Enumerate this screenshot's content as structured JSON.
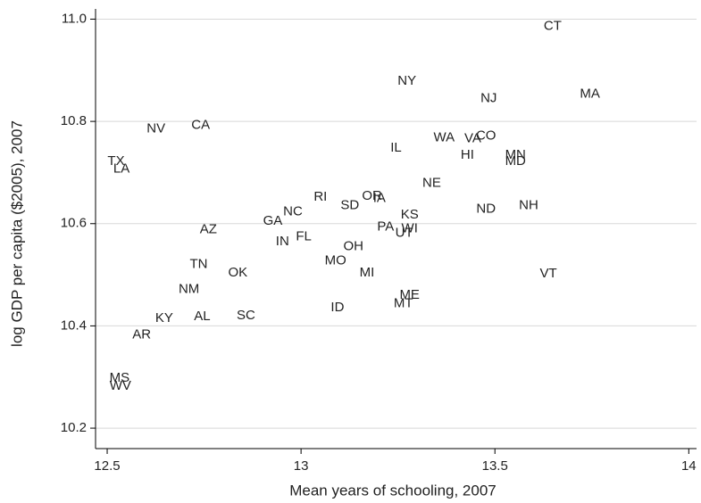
{
  "chart_data": {
    "type": "scatter",
    "x_label": "Mean years of schooling, 2007",
    "y_label": "log GDP per capita ($2005), 2007",
    "labels": [
      "CT",
      "NY",
      "NJ",
      "MA",
      "NV",
      "CA",
      "WA",
      "VA",
      "CO",
      "IL",
      "HI",
      "MN",
      "MD",
      "TX",
      "LA",
      "NE",
      "RI",
      "OR",
      "IA",
      "SD",
      "NC",
      "KS",
      "ND",
      "NH",
      "GA",
      "AZ",
      "PA",
      "WI",
      "UT",
      "IN",
      "FL",
      "OH",
      "MO",
      "TN",
      "OK",
      "MI",
      "VT",
      "NM",
      "ME",
      "MT",
      "ID",
      "KY",
      "AL",
      "SC",
      "AR",
      "MS",
      "WV"
    ],
    "x": [
      13.649,
      13.273,
      13.484,
      13.745,
      12.626,
      12.741,
      13.369,
      13.443,
      13.477,
      13.245,
      13.429,
      13.553,
      13.553,
      12.523,
      12.537,
      13.337,
      13.05,
      13.183,
      13.202,
      13.126,
      12.979,
      13.28,
      13.477,
      13.587,
      12.927,
      12.761,
      13.218,
      13.28,
      13.266,
      12.952,
      13.007,
      13.135,
      13.089,
      12.736,
      12.837,
      13.17,
      13.638,
      12.711,
      13.28,
      13.264,
      13.094,
      12.647,
      12.745,
      12.858,
      12.589,
      12.532,
      12.534
    ],
    "values": [
      10.986,
      10.879,
      10.845,
      10.853,
      10.785,
      10.792,
      10.768,
      10.766,
      10.771,
      10.748,
      10.734,
      10.734,
      10.722,
      10.722,
      10.707,
      10.679,
      10.652,
      10.654,
      10.649,
      10.635,
      10.623,
      10.617,
      10.628,
      10.635,
      10.605,
      10.588,
      10.593,
      10.59,
      10.581,
      10.565,
      10.574,
      10.555,
      10.527,
      10.52,
      10.504,
      10.504,
      10.502,
      10.471,
      10.46,
      10.443,
      10.436,
      10.415,
      10.418,
      10.42,
      10.382,
      10.298,
      10.282
    ],
    "xlim": [
      12.47,
      14.02
    ],
    "ylim": [
      10.16,
      11.02
    ],
    "xticks": [
      12.5,
      13,
      13.5,
      14
    ],
    "yticks": [
      {
        "value": 11,
        "label": "11.0"
      },
      10.8,
      10.6,
      10.4,
      10.2
    ],
    "grid": true
  }
}
